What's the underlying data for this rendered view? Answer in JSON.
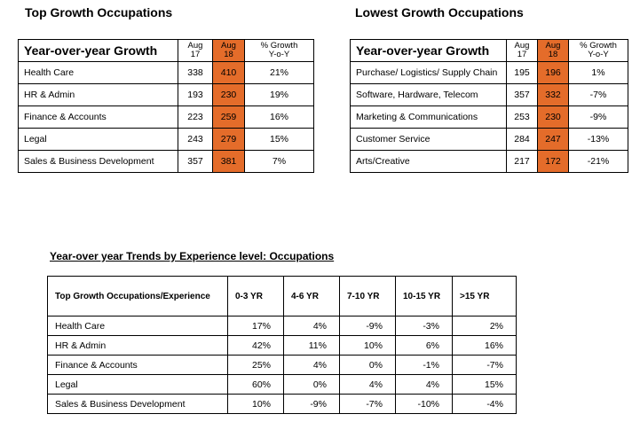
{
  "top_growth": {
    "title": "Top Growth Occupations",
    "header": {
      "label": "Year-over-year Growth",
      "col1_line1": "Aug",
      "col1_line2": "17",
      "col2_line1": "Aug",
      "col2_line2": "18",
      "col3_line1": "% Growth",
      "col3_line2": "Y-o-Y"
    },
    "rows": [
      {
        "name": "Health Care",
        "aug17": "338",
        "aug18": "410",
        "growth": "21%"
      },
      {
        "name": "HR & Admin",
        "aug17": "193",
        "aug18": "230",
        "growth": "19%"
      },
      {
        "name": "Finance & Accounts",
        "aug17": "223",
        "aug18": "259",
        "growth": "16%"
      },
      {
        "name": "Legal",
        "aug17": "243",
        "aug18": "279",
        "growth": "15%"
      },
      {
        "name": "Sales & Business Development",
        "aug17": "357",
        "aug18": "381",
        "growth": "7%"
      }
    ]
  },
  "lowest_growth": {
    "title": "Lowest Growth Occupations",
    "header": {
      "label": "Year-over-year Growth",
      "col1_line1": "Aug",
      "col1_line2": "17",
      "col2_line1": "Aug",
      "col2_line2": "18",
      "col3_line1": "% Growth",
      "col3_line2": "Y-o-Y"
    },
    "rows": [
      {
        "name": "Purchase/ Logistics/ Supply Chain",
        "aug17": "195",
        "aug18": "196",
        "growth": "1%"
      },
      {
        "name": "Software, Hardware, Telecom",
        "aug17": "357",
        "aug18": "332",
        "growth": "-7%"
      },
      {
        "name": "Marketing & Communications",
        "aug17": "253",
        "aug18": "230",
        "growth": "-9%"
      },
      {
        "name": "Customer Service",
        "aug17": "284",
        "aug18": "247",
        "growth": "-13%"
      },
      {
        "name": "Arts/Creative",
        "aug17": "217",
        "aug18": "172",
        "growth": "-21%"
      }
    ]
  },
  "experience_trends": {
    "title": "Year-over year Trends by Experience level: Occupations",
    "columns": [
      "Top Growth Occupations/Experience",
      "0-3 YR",
      "4-6 YR",
      "7-10 YR",
      "10-15 YR",
      ">15 YR"
    ],
    "rows": [
      {
        "name": "Health Care",
        "values": [
          "17%",
          "4%",
          "-9%",
          "-3%",
          "2%"
        ]
      },
      {
        "name": "HR & Admin",
        "values": [
          "42%",
          "11%",
          "10%",
          "6%",
          "16%"
        ]
      },
      {
        "name": "Finance & Accounts",
        "values": [
          "25%",
          "4%",
          "0%",
          "-1%",
          "-7%"
        ]
      },
      {
        "name": "Legal",
        "values": [
          "60%",
          "0%",
          "4%",
          "4%",
          "15%"
        ]
      },
      {
        "name": "Sales & Business Development",
        "values": [
          "10%",
          "-9%",
          "-7%",
          "-10%",
          "-4%"
        ]
      }
    ]
  },
  "highlight_color": "#E46C2A"
}
